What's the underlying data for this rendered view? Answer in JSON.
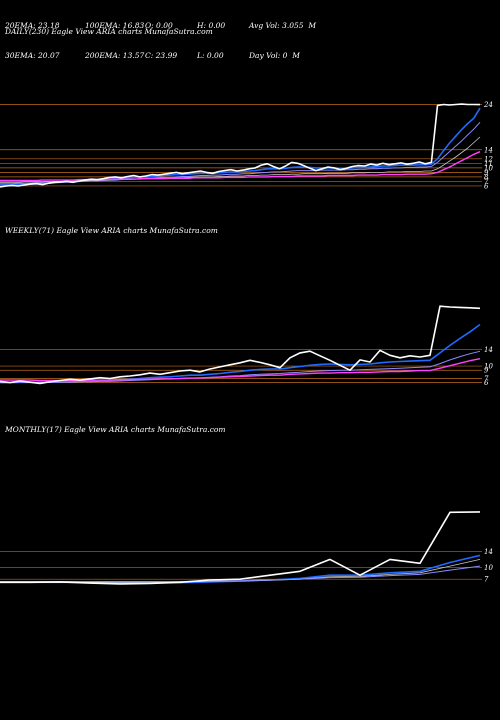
{
  "header": {
    "row1": [
      "20EMA: 23.18",
      "100EMA: 16.83",
      "O: 0.00",
      "H: 0.00",
      "Avg Vol: 3.055  M"
    ],
    "row2": [
      "30EMA: 20.07",
      "200EMA: 13.57",
      "C: 23.99",
      "L: 0.00",
      "Day Vol: 0  M"
    ]
  },
  "colors": {
    "background": "#000000",
    "price": "#ffffff",
    "ema_short": "#1f6bff",
    "ema_medium": "#8a8aff",
    "ema_long": "#ff40ff",
    "level": "#c06a1a",
    "ema_grey": "#c8c8c8"
  },
  "chart_data": [
    {
      "type": "line",
      "title": "DAILY(230) Eagle   View  ARIA charts MunafaSutra.com",
      "y_ticks": [
        "24",
        "14",
        "12",
        "11",
        "10",
        "9",
        "8",
        "7",
        "6"
      ],
      "y_range": [
        4,
        25
      ],
      "levels": [
        24,
        14,
        12,
        11,
        10,
        9,
        8,
        7,
        6
      ],
      "series": [
        {
          "role": "price",
          "values": [
            5.8,
            6.0,
            6.1,
            6.0,
            6.2,
            6.4,
            6.5,
            6.3,
            6.6,
            6.8,
            6.9,
            7.0,
            6.8,
            7.1,
            7.3,
            7.5,
            7.4,
            7.6,
            7.9,
            8.0,
            7.8,
            8.1,
            8.3,
            8.0,
            8.2,
            8.5,
            8.4,
            8.6,
            8.8,
            9.0,
            8.7,
            8.9,
            9.1,
            9.3,
            9.0,
            8.8,
            9.2,
            9.4,
            9.6,
            9.3,
            9.5,
            9.8,
            10.0,
            10.6,
            10.9,
            10.3,
            9.8,
            10.4,
            11.2,
            11.0,
            10.5,
            9.9,
            9.4,
            9.8,
            10.2,
            10.0,
            9.6,
            9.9,
            10.3,
            10.5,
            10.4,
            10.8,
            10.6,
            11.0,
            10.7,
            10.9,
            11.1,
            10.8,
            11.0,
            11.3,
            10.9,
            11.2,
            23.8,
            24.0,
            23.9,
            24.0,
            24.1,
            24.0,
            24.0,
            23.99
          ]
        },
        {
          "role": "ema_short",
          "values": [
            6.2,
            6.2,
            6.3,
            6.3,
            6.4,
            6.4,
            6.5,
            6.5,
            6.6,
            6.7,
            6.8,
            6.9,
            6.9,
            7.0,
            7.1,
            7.2,
            7.3,
            7.4,
            7.5,
            7.6,
            7.7,
            7.8,
            7.9,
            8.0,
            8.0,
            8.1,
            8.2,
            8.3,
            8.4,
            8.5,
            8.5,
            8.6,
            8.7,
            8.8,
            8.8,
            8.8,
            8.9,
            9.0,
            9.1,
            9.1,
            9.2,
            9.3,
            9.4,
            9.6,
            9.8,
            9.8,
            9.8,
            9.9,
            10.1,
            10.2,
            10.2,
            10.1,
            10.0,
            10.0,
            10.0,
            10.0,
            9.9,
            9.9,
            10.0,
            10.1,
            10.1,
            10.2,
            10.3,
            10.4,
            10.4,
            10.5,
            10.6,
            10.6,
            10.6,
            10.7,
            10.7,
            10.8,
            12.0,
            13.8,
            15.5,
            17.0,
            18.5,
            19.8,
            21.0,
            23.18
          ]
        },
        {
          "role": "ema_medium",
          "values": [
            6.5,
            6.5,
            6.5,
            6.6,
            6.6,
            6.6,
            6.7,
            6.7,
            6.7,
            6.8,
            6.8,
            6.9,
            6.9,
            7.0,
            7.0,
            7.1,
            7.1,
            7.2,
            7.3,
            7.3,
            7.4,
            7.5,
            7.5,
            7.6,
            7.7,
            7.7,
            7.8,
            7.9,
            7.9,
            8.0,
            8.1,
            8.1,
            8.2,
            8.3,
            8.3,
            8.4,
            8.4,
            8.5,
            8.6,
            8.6,
            8.7,
            8.7,
            8.8,
            8.9,
            9.0,
            9.1,
            9.1,
            9.2,
            9.3,
            9.4,
            9.4,
            9.4,
            9.4,
            9.5,
            9.5,
            9.5,
            9.5,
            9.6,
            9.6,
            9.7,
            9.7,
            9.8,
            9.8,
            9.9,
            9.9,
            10.0,
            10.0,
            10.1,
            10.1,
            10.2,
            10.2,
            10.3,
            11.2,
            12.4,
            13.6,
            14.8,
            16.0,
            17.3,
            18.6,
            20.07
          ]
        },
        {
          "role": "ema_grey",
          "values": [
            6.8,
            6.8,
            6.8,
            6.8,
            6.9,
            6.9,
            6.9,
            6.9,
            7.0,
            7.0,
            7.0,
            7.1,
            7.1,
            7.1,
            7.2,
            7.2,
            7.2,
            7.3,
            7.3,
            7.4,
            7.4,
            7.4,
            7.5,
            7.5,
            7.6,
            7.6,
            7.7,
            7.7,
            7.7,
            7.8,
            7.8,
            7.9,
            7.9,
            8.0,
            8.0,
            8.0,
            8.1,
            8.1,
            8.2,
            8.2,
            8.2,
            8.3,
            8.3,
            8.4,
            8.4,
            8.5,
            8.5,
            8.5,
            8.6,
            8.6,
            8.7,
            8.7,
            8.7,
            8.7,
            8.8,
            8.8,
            8.8,
            8.8,
            8.9,
            8.9,
            8.9,
            9.0,
            9.0,
            9.0,
            9.1,
            9.1,
            9.1,
            9.2,
            9.2,
            9.2,
            9.3,
            9.3,
            9.8,
            10.6,
            11.5,
            12.4,
            13.4,
            14.4,
            15.6,
            16.83
          ]
        },
        {
          "role": "ema_long",
          "values": [
            7.2,
            7.2,
            7.2,
            7.2,
            7.2,
            7.2,
            7.2,
            7.3,
            7.3,
            7.3,
            7.3,
            7.3,
            7.3,
            7.4,
            7.4,
            7.4,
            7.4,
            7.4,
            7.5,
            7.5,
            7.5,
            7.5,
            7.5,
            7.6,
            7.6,
            7.6,
            7.6,
            7.6,
            7.7,
            7.7,
            7.7,
            7.7,
            7.8,
            7.8,
            7.8,
            7.8,
            7.8,
            7.9,
            7.9,
            7.9,
            7.9,
            8.0,
            8.0,
            8.0,
            8.0,
            8.1,
            8.1,
            8.1,
            8.1,
            8.2,
            8.2,
            8.2,
            8.2,
            8.2,
            8.3,
            8.3,
            8.3,
            8.3,
            8.3,
            8.4,
            8.4,
            8.4,
            8.4,
            8.5,
            8.5,
            8.5,
            8.5,
            8.6,
            8.6,
            8.6,
            8.6,
            8.7,
            9.0,
            9.6,
            10.2,
            10.9,
            11.6,
            12.3,
            13.0,
            13.57
          ]
        }
      ]
    },
    {
      "type": "line",
      "title": "WEEKLY(71) Eagle   View  ARIA charts MunafaSutra.com",
      "y_ticks": [
        "14",
        "10",
        "9",
        "7",
        "6"
      ],
      "y_range": [
        3,
        26
      ],
      "levels": [
        14,
        10,
        9,
        7,
        6
      ],
      "series": [
        {
          "role": "price",
          "values": [
            6.3,
            6.0,
            6.4,
            6.1,
            5.8,
            6.2,
            6.5,
            6.8,
            6.6,
            6.9,
            7.2,
            7.0,
            7.4,
            7.6,
            7.9,
            8.3,
            8.0,
            8.4,
            8.8,
            9.0,
            8.6,
            9.3,
            9.8,
            10.3,
            10.8,
            11.4,
            10.9,
            10.3,
            9.6,
            12.0,
            13.2,
            13.6,
            12.5,
            11.4,
            10.2,
            9.0,
            11.5,
            11.0,
            13.8,
            12.6,
            12.0,
            12.5,
            12.2,
            12.6,
            24.5,
            24.3,
            24.2,
            24.1,
            23.99
          ]
        },
        {
          "role": "ema_short",
          "values": [
            6.0,
            6.0,
            6.1,
            6.1,
            6.1,
            6.1,
            6.2,
            6.3,
            6.3,
            6.4,
            6.5,
            6.6,
            6.7,
            6.8,
            7.0,
            7.2,
            7.3,
            7.4,
            7.6,
            7.8,
            7.8,
            8.0,
            8.2,
            8.5,
            8.7,
            9.0,
            9.2,
            9.3,
            9.3,
            9.6,
            9.9,
            10.2,
            10.4,
            10.5,
            10.4,
            10.3,
            10.4,
            10.5,
            10.8,
            11.0,
            11.1,
            11.2,
            11.3,
            11.4,
            13.2,
            15.0,
            16.7,
            18.3,
            20.07
          ]
        },
        {
          "role": "ema_medium",
          "values": [
            6.0,
            6.0,
            6.0,
            6.0,
            6.0,
            6.1,
            6.1,
            6.1,
            6.2,
            6.2,
            6.3,
            6.3,
            6.4,
            6.5,
            6.6,
            6.7,
            6.8,
            6.9,
            7.0,
            7.1,
            7.2,
            7.3,
            7.4,
            7.6,
            7.7,
            7.9,
            8.0,
            8.1,
            8.2,
            8.4,
            8.5,
            8.7,
            8.8,
            8.9,
            9.0,
            9.0,
            9.1,
            9.2,
            9.3,
            9.4,
            9.5,
            9.6,
            9.7,
            9.8,
            10.6,
            11.5,
            12.3,
            13.0,
            13.57
          ]
        },
        {
          "role": "ema_long",
          "values": [
            6.6,
            6.6,
            6.6,
            6.6,
            6.5,
            6.5,
            6.5,
            6.5,
            6.5,
            6.6,
            6.6,
            6.6,
            6.7,
            6.7,
            6.8,
            6.8,
            6.9,
            6.9,
            7.0,
            7.1,
            7.1,
            7.2,
            7.3,
            7.4,
            7.5,
            7.6,
            7.7,
            7.8,
            7.8,
            8.0,
            8.1,
            8.2,
            8.3,
            8.3,
            8.4,
            8.4,
            8.5,
            8.5,
            8.6,
            8.7,
            8.7,
            8.8,
            8.9,
            8.9,
            9.5,
            10.1,
            10.7,
            11.3,
            11.8
          ]
        }
      ]
    },
    {
      "type": "line",
      "title": "MONTHLY(17) Eagle   View  ARIA charts MunafaSutra.com",
      "y_ticks": [
        "14",
        "10",
        "7"
      ],
      "y_range": [
        3,
        27
      ],
      "levels": [
        14,
        10,
        7
      ],
      "series": [
        {
          "role": "price",
          "values": [
            6.2,
            6.2,
            6.3,
            6.0,
            5.8,
            5.9,
            6.2,
            6.8,
            7.0,
            8.0,
            9.0,
            12.0,
            8.0,
            12.0,
            11.0,
            23.9,
            23.99
          ]
        },
        {
          "role": "ema_short",
          "values": [
            6.2,
            6.2,
            6.2,
            6.2,
            6.1,
            6.1,
            6.1,
            6.3,
            6.5,
            6.8,
            7.2,
            8.0,
            8.0,
            8.6,
            9.0,
            11.2,
            13.0
          ]
        },
        {
          "role": "ema_grey",
          "values": [
            6.2,
            6.2,
            6.2,
            6.2,
            6.2,
            6.2,
            6.3,
            6.4,
            6.5,
            6.7,
            7.0,
            7.6,
            7.7,
            8.2,
            8.6,
            10.3,
            12.0
          ]
        },
        {
          "role": "ema_medium",
          "values": [
            6.4,
            6.4,
            6.4,
            6.4,
            6.4,
            6.4,
            6.4,
            6.5,
            6.6,
            6.8,
            7.0,
            7.4,
            7.5,
            7.9,
            8.2,
            9.3,
            10.3
          ]
        }
      ]
    }
  ]
}
